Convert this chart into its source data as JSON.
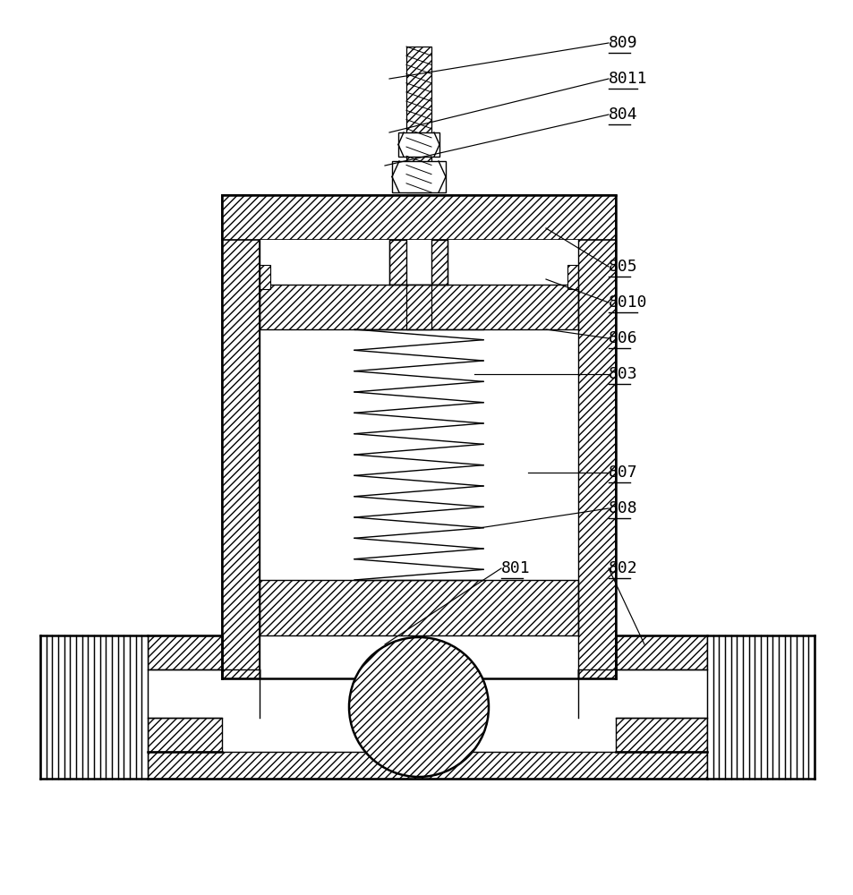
{
  "bg_color": "#ffffff",
  "line_color": "#000000",
  "fig_width": 9.54,
  "fig_height": 10.0,
  "dpi": 100,
  "labels": [
    [
      "809",
      680,
      48,
      435,
      88
    ],
    [
      "8011",
      680,
      88,
      435,
      148
    ],
    [
      "804",
      680,
      128,
      430,
      185
    ],
    [
      "805",
      680,
      298,
      610,
      255
    ],
    [
      "8010",
      680,
      338,
      610,
      312
    ],
    [
      "806",
      680,
      378,
      610,
      368
    ],
    [
      "803",
      680,
      418,
      530,
      418
    ],
    [
      "807",
      680,
      528,
      590,
      528
    ],
    [
      "808",
      680,
      568,
      535,
      590
    ],
    [
      "801",
      560,
      635,
      430,
      720
    ],
    [
      "802",
      680,
      635,
      720,
      720
    ]
  ]
}
